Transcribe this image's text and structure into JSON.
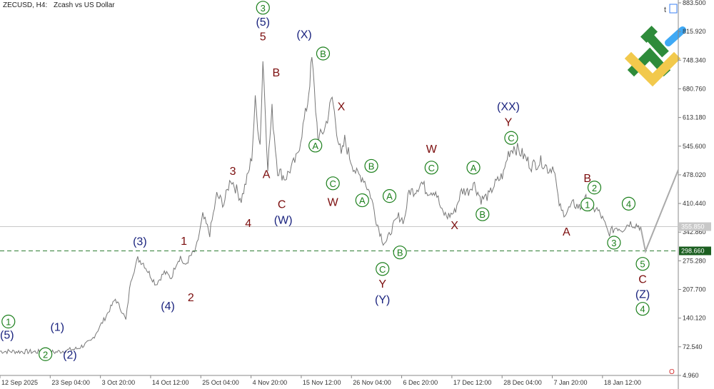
{
  "header": {
    "symbol": "ZECUSD, H4:",
    "description": "Zcash vs US Dollar"
  },
  "colors": {
    "navy": "#1a237e",
    "maroon": "#7b0d0d",
    "green": "#1b7f1b",
    "price": "#777777",
    "forecast": "#aaaaaa",
    "level": "#2e7d32"
  },
  "chart_data": {
    "type": "line",
    "x_ticks": [
      "12 Sep 2025",
      "23 Sep 04:00",
      "3 Oct 20:00",
      "14 Oct 12:00",
      "25 Oct 04:00",
      "4 Nov 20:00",
      "15 Nov 12:00",
      "26 Nov 04:00",
      "6 Dec 20:00",
      "17 Dec 12:00",
      "28 Dec 04:00",
      "7 Jan 20:00",
      "18 Jan 12:00"
    ],
    "y_ticks": [
      "883.500",
      "815.920",
      "748.340",
      "680.760",
      "613.180",
      "545.600",
      "478.020",
      "410.440",
      "342.860",
      "275.280",
      "207.700",
      "140.120",
      "72.540",
      "4.960"
    ],
    "ylim": [
      4.96,
      883.5
    ],
    "current_price": "355.850",
    "support_level": {
      "value": 298.66,
      "label": "298.660"
    },
    "close": [
      [
        0,
        62
      ],
      [
        8,
        60
      ],
      [
        11,
        68
      ],
      [
        13,
        85
      ],
      [
        15,
        140
      ],
      [
        16.5,
        185
      ],
      [
        17.5,
        155
      ],
      [
        18,
        135
      ],
      [
        18.7,
        230
      ],
      [
        19.7,
        280
      ],
      [
        20.5,
        270
      ],
      [
        21,
        255
      ],
      [
        22.3,
        220
      ],
      [
        23.5,
        248
      ],
      [
        24.5,
        235
      ],
      [
        25.2,
        270
      ],
      [
        25.8,
        285
      ],
      [
        26.4,
        262
      ],
      [
        27.2,
        285
      ],
      [
        28,
        300
      ],
      [
        29,
        380
      ],
      [
        30,
        340
      ],
      [
        31,
        430
      ],
      [
        32,
        410
      ],
      [
        33,
        470
      ],
      [
        34.5,
        420
      ],
      [
        35.5,
        480
      ],
      [
        36,
        520
      ],
      [
        36.5,
        650
      ],
      [
        37.2,
        550
      ],
      [
        37.6,
        750
      ],
      [
        38.3,
        500
      ],
      [
        38.9,
        630
      ],
      [
        39.7,
        490
      ],
      [
        40.8,
        470
      ],
      [
        42.5,
        520
      ],
      [
        44,
        650
      ],
      [
        44.6,
        750
      ],
      [
        45.5,
        560
      ],
      [
        46.5,
        590
      ],
      [
        47.5,
        660
      ],
      [
        48.3,
        570
      ],
      [
        48.8,
        520
      ],
      [
        49.3,
        560
      ],
      [
        50,
        520
      ],
      [
        51,
        480
      ],
      [
        52,
        470
      ],
      [
        53,
        430
      ],
      [
        54,
        360
      ],
      [
        54.8,
        320
      ],
      [
        55.3,
        320
      ],
      [
        56,
        350
      ],
      [
        57,
        380
      ],
      [
        57.8,
        370
      ],
      [
        58.5,
        440
      ],
      [
        59.3,
        440
      ],
      [
        60.3,
        460
      ],
      [
        61,
        440
      ],
      [
        62.3,
        440
      ],
      [
        63.2,
        390
      ],
      [
        64,
        380
      ],
      [
        65,
        390
      ],
      [
        66,
        440
      ],
      [
        67,
        440
      ],
      [
        67.7,
        460
      ],
      [
        68.8,
        420
      ],
      [
        70,
        430
      ],
      [
        70.5,
        450
      ],
      [
        71,
        460
      ],
      [
        72,
        480
      ],
      [
        72.7,
        530
      ],
      [
        73.5,
        545
      ],
      [
        74.5,
        530
      ],
      [
        76,
        500
      ],
      [
        77.5,
        510
      ],
      [
        78.5,
        490
      ],
      [
        79.2,
        500
      ],
      [
        79.8,
        420
      ],
      [
        80.3,
        390
      ],
      [
        81,
        390
      ],
      [
        82,
        410
      ],
      [
        83,
        400
      ],
      [
        83.8,
        420
      ],
      [
        84.5,
        390
      ],
      [
        85.2,
        400
      ],
      [
        86,
        380
      ],
      [
        87,
        340
      ],
      [
        88.2,
        355
      ],
      [
        89,
        350
      ],
      [
        90,
        365
      ],
      [
        91,
        360
      ],
      [
        91.6,
        356
      ]
    ],
    "forecast": [
      [
        91.6,
        356
      ],
      [
        92.3,
        298
      ],
      [
        97,
        490
      ]
    ]
  },
  "wave_labels": [
    {
      "t": "3",
      "x": 37.6,
      "y": 872,
      "c": "green",
      "circle": true
    },
    {
      "t": "(5)",
      "x": 37.6,
      "y": 840,
      "c": "navy"
    },
    {
      "t": "5",
      "x": 37.6,
      "y": 805,
      "c": "maroon"
    },
    {
      "t": "B",
      "x": 39.5,
      "y": 720,
      "c": "maroon"
    },
    {
      "t": "A",
      "x": 38.1,
      "y": 480,
      "c": "maroon"
    },
    {
      "t": "C",
      "x": 40.3,
      "y": 410,
      "c": "maroon"
    },
    {
      "t": "(W)",
      "x": 40.5,
      "y": 373,
      "c": "navy"
    },
    {
      "t": "3",
      "x": 33.3,
      "y": 488,
      "c": "maroon"
    },
    {
      "t": "4",
      "x": 35.5,
      "y": 365,
      "c": "maroon"
    },
    {
      "t": "(X)",
      "x": 43.5,
      "y": 810,
      "c": "navy"
    },
    {
      "t": "B",
      "x": 46.2,
      "y": 764,
      "c": "green",
      "circle": true
    },
    {
      "t": "A",
      "x": 45.1,
      "y": 547,
      "c": "green",
      "circle": true
    },
    {
      "t": "X",
      "x": 48.8,
      "y": 640,
      "c": "maroon"
    },
    {
      "t": "C",
      "x": 47.6,
      "y": 458,
      "c": "green",
      "circle": true
    },
    {
      "t": "W",
      "x": 47.6,
      "y": 415,
      "c": "maroon"
    },
    {
      "t": "B",
      "x": 53.1,
      "y": 499,
      "c": "green",
      "circle": true
    },
    {
      "t": "A",
      "x": 51.8,
      "y": 418,
      "c": "green",
      "circle": true
    },
    {
      "t": "A",
      "x": 55.7,
      "y": 428,
      "c": "green",
      "circle": true
    },
    {
      "t": "B",
      "x": 57.2,
      "y": 295,
      "c": "green",
      "circle": true
    },
    {
      "t": "C",
      "x": 54.7,
      "y": 256,
      "c": "green",
      "circle": true
    },
    {
      "t": "Y",
      "x": 54.7,
      "y": 222,
      "c": "maroon"
    },
    {
      "t": "(Y)",
      "x": 54.7,
      "y": 185,
      "c": "navy"
    },
    {
      "t": "W",
      "x": 61.7,
      "y": 540,
      "c": "maroon"
    },
    {
      "t": "C",
      "x": 61.7,
      "y": 495,
      "c": "green",
      "circle": true
    },
    {
      "t": "A",
      "x": 67.7,
      "y": 495,
      "c": "green",
      "circle": true
    },
    {
      "t": "B",
      "x": 69.0,
      "y": 385,
      "c": "green",
      "circle": true
    },
    {
      "t": "X",
      "x": 65.0,
      "y": 360,
      "c": "maroon"
    },
    {
      "t": "(XX)",
      "x": 72.7,
      "y": 640,
      "c": "navy"
    },
    {
      "t": "Y",
      "x": 72.7,
      "y": 603,
      "c": "maroon"
    },
    {
      "t": "C",
      "x": 73.1,
      "y": 565,
      "c": "green",
      "circle": true
    },
    {
      "t": "B",
      "x": 84.0,
      "y": 471,
      "c": "maroon"
    },
    {
      "t": "2",
      "x": 85.0,
      "y": 448,
      "c": "green",
      "circle": true
    },
    {
      "t": "1",
      "x": 84.0,
      "y": 408,
      "c": "green",
      "circle": true
    },
    {
      "t": "A",
      "x": 81.0,
      "y": 345,
      "c": "maroon"
    },
    {
      "t": "4",
      "x": 89.9,
      "y": 410,
      "c": "green",
      "circle": true
    },
    {
      "t": "3",
      "x": 87.8,
      "y": 318,
      "c": "green",
      "circle": true
    },
    {
      "t": "5",
      "x": 91.9,
      "y": 268,
      "c": "green",
      "circle": true
    },
    {
      "t": "C",
      "x": 91.9,
      "y": 233,
      "c": "maroon"
    },
    {
      "t": "(Z)",
      "x": 91.9,
      "y": 198,
      "c": "navy"
    },
    {
      "t": "4",
      "x": 91.9,
      "y": 162,
      "c": "green",
      "circle": true
    },
    {
      "t": "(3)",
      "x": 20.0,
      "y": 322,
      "c": "navy"
    },
    {
      "t": "1",
      "x": 26.3,
      "y": 323,
      "c": "maroon"
    },
    {
      "t": "2",
      "x": 27.3,
      "y": 190,
      "c": "maroon"
    },
    {
      "t": "(4)",
      "x": 24.0,
      "y": 170,
      "c": "navy"
    },
    {
      "t": "1",
      "x": 1.2,
      "y": 132,
      "c": "green",
      "circle": true
    },
    {
      "t": "(5)",
      "x": 1.0,
      "y": 102,
      "c": "navy"
    },
    {
      "t": "(1)",
      "x": 8.2,
      "y": 120,
      "c": "navy"
    },
    {
      "t": "2",
      "x": 6.5,
      "y": 55,
      "c": "green",
      "circle": true
    },
    {
      "t": "(2)",
      "x": 10.0,
      "y": 55,
      "c": "navy"
    }
  ]
}
